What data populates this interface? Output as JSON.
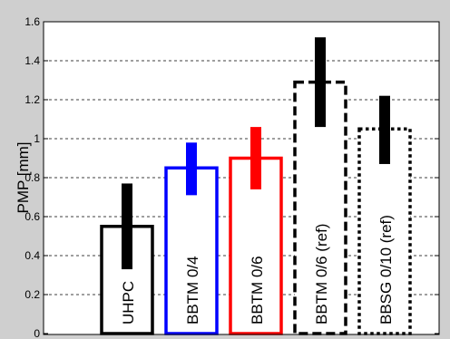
{
  "chart_data": {
    "type": "bar",
    "title": "",
    "xlabel": "",
    "ylabel": "PMP [mm]",
    "ylim": [
      0,
      1.6
    ],
    "yticks": [
      "0",
      "0.2",
      "0.4",
      "0.6",
      "0.8",
      "1",
      "1.2",
      "1.4",
      "1.6"
    ],
    "grid": "horizontal dashed",
    "categories": [
      "UHPC",
      "BBTM 0/4",
      "BBTM 0/6",
      "BBTM 0/6 (ref)",
      "BBSG 0/10 (ref)"
    ],
    "values": [
      0.55,
      0.85,
      0.9,
      1.29,
      1.05
    ],
    "error_low": [
      0.33,
      0.71,
      0.74,
      1.06,
      0.87
    ],
    "error_high": [
      0.77,
      0.98,
      1.06,
      1.52,
      1.22
    ],
    "bar_styles": [
      {
        "color": "#000000",
        "line": "solid"
      },
      {
        "color": "#0000ff",
        "line": "solid"
      },
      {
        "color": "#ff0000",
        "line": "solid"
      },
      {
        "color": "#000000",
        "line": "dashed"
      },
      {
        "color": "#000000",
        "line": "dotted"
      }
    ],
    "errorbar_colors": [
      "#000000",
      "#0000ff",
      "#ff0000",
      "#000000",
      "#000000"
    ],
    "background_color": "#cfcfcf",
    "plot_background_color": "#ffffff"
  }
}
